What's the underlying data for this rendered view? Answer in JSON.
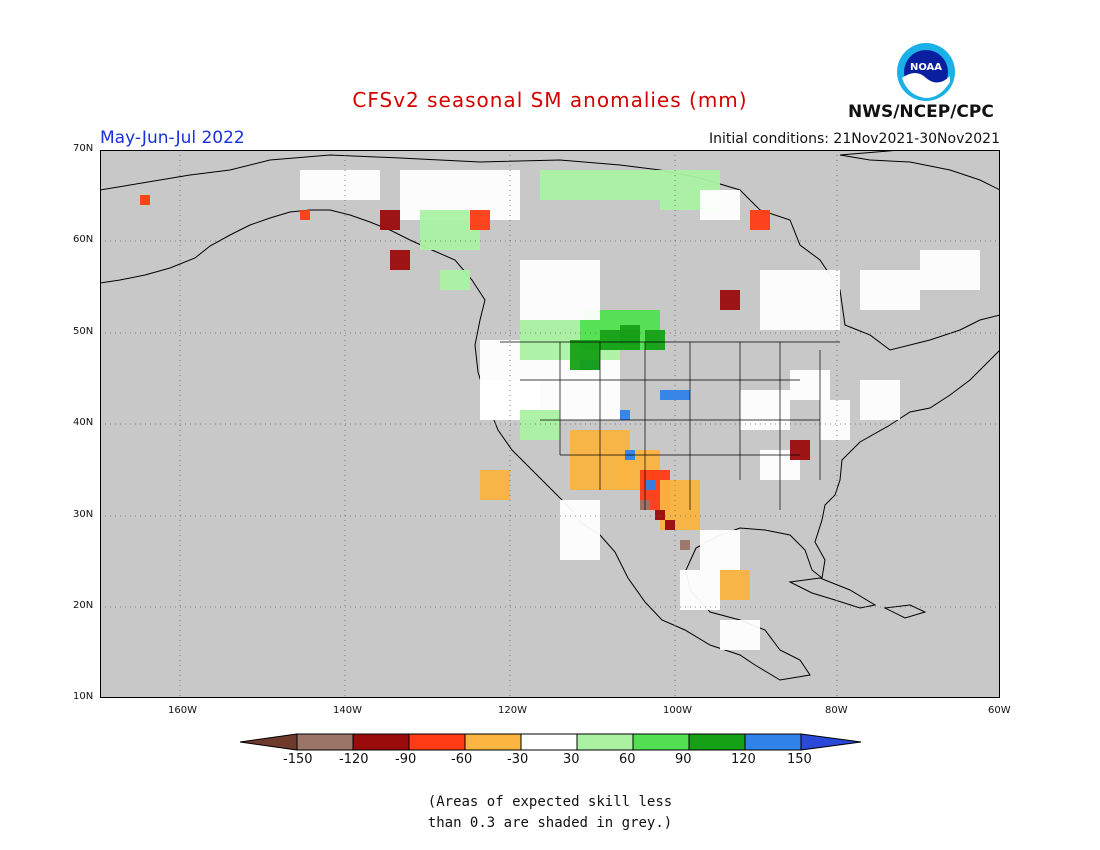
{
  "title": "CFSv2 seasonal SM anomalies (mm)",
  "period": "May-Jun-Jul 2022",
  "initial_conditions": "Initial conditions: 21Nov2021-30Nov2021",
  "agency": "NWS/NCEP/CPC",
  "logo_text": "NOAA",
  "lat_labels": [
    "70N",
    "60N",
    "50N",
    "40N",
    "30N",
    "20N",
    "10N"
  ],
  "lon_labels": [
    "160W",
    "140W",
    "120W",
    "100W",
    "80W",
    "60W"
  ],
  "colorbar": {
    "ticks": [
      "-150",
      "-120",
      "-90",
      "-60",
      "-30",
      "30",
      "60",
      "90",
      "120",
      "150"
    ],
    "colors": [
      "#6e3a2c",
      "#9b7468",
      "#9a0b0b",
      "#ff3c15",
      "#fbb440",
      "#ffffff",
      "#aaf2a2",
      "#52e052",
      "#16a016",
      "#2f82e8",
      "#2a49d8"
    ]
  },
  "note_line1": "(Areas of expected skill less",
  "note_line2": "than 0.3 are shaded in grey.)",
  "colors": {
    "no_skill_grey": "#c8c8c8",
    "title_red": "#d40000",
    "period_blue": "#1a2fe0"
  }
}
